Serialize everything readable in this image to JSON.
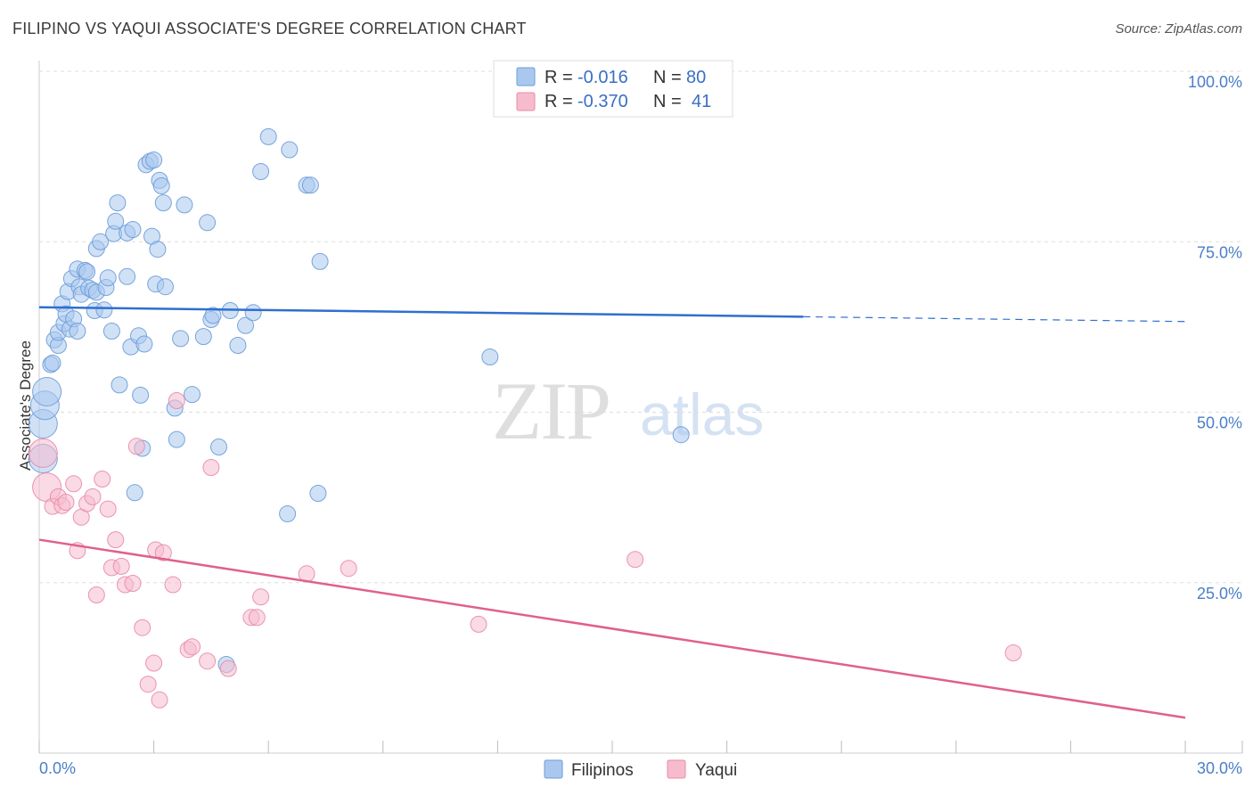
{
  "title": "FILIPINO VS YAQUI ASSOCIATE'S DEGREE CORRELATION CHART",
  "source": "Source: ZipAtlas.com",
  "watermark": {
    "zip": "ZIP",
    "atlas": "atlas"
  },
  "legend_top": {
    "r_label": "R =",
    "n_label": "N =",
    "rows": [
      {
        "r": "-0.016",
        "n": "80"
      },
      {
        "r": "-0.370",
        "n": "41"
      }
    ]
  },
  "colors": {
    "filipinos_fill": "#aac8ee",
    "filipinos_stroke": "#6a9bd8",
    "filipinos_line": "#2f6fce",
    "yaqui_fill": "#f6bccd",
    "yaqui_stroke": "#e98aa7",
    "yaqui_line": "#e0608c",
    "grid": "#dddddd",
    "tick_label": "#4a7fc8"
  },
  "chart_data": {
    "type": "scatter",
    "title": "FILIPINO VS YAQUI ASSOCIATE'S DEGREE CORRELATION CHART",
    "xlabel": "",
    "ylabel": "Associate's Degree",
    "xlim": [
      0,
      30
    ],
    "ylim": [
      0,
      100
    ],
    "x_tick_labels": [
      "0.0%",
      "30.0%"
    ],
    "y_ticks": [
      25,
      50,
      75,
      100
    ],
    "y_tick_labels": [
      "25.0%",
      "50.0%",
      "75.0%",
      "100.0%"
    ],
    "grid": true,
    "legend_position": "bottom-center",
    "series": [
      {
        "name": "Filipinos",
        "r": -0.016,
        "n": 80,
        "trend": {
          "x0": 0,
          "y0": 65.4,
          "x1": 20,
          "y1": 64.0,
          "dashed_to_x": 30,
          "dashed_to_y": 63.3
        },
        "points": [
          [
            0.1,
            48.3
          ],
          [
            0.1,
            43.2
          ],
          [
            0.15,
            51.0
          ],
          [
            0.2,
            53.0
          ],
          [
            0.3,
            57.0
          ],
          [
            0.35,
            57.2
          ],
          [
            0.4,
            60.6
          ],
          [
            0.5,
            59.8
          ],
          [
            0.5,
            61.7
          ],
          [
            0.6,
            65.9
          ],
          [
            0.65,
            63.0
          ],
          [
            0.7,
            64.4
          ],
          [
            0.75,
            67.7
          ],
          [
            0.8,
            62.2
          ],
          [
            0.85,
            69.6
          ],
          [
            0.9,
            63.7
          ],
          [
            1.0,
            61.9
          ],
          [
            1.0,
            71.0
          ],
          [
            1.05,
            68.4
          ],
          [
            1.1,
            67.3
          ],
          [
            1.2,
            70.8
          ],
          [
            1.25,
            70.6
          ],
          [
            1.3,
            68.2
          ],
          [
            1.4,
            67.9
          ],
          [
            1.45,
            64.9
          ],
          [
            1.5,
            67.6
          ],
          [
            1.5,
            74.0
          ],
          [
            1.6,
            75.0
          ],
          [
            1.7,
            65.0
          ],
          [
            1.75,
            68.3
          ],
          [
            1.8,
            69.7
          ],
          [
            1.9,
            61.9
          ],
          [
            1.95,
            76.2
          ],
          [
            2.0,
            78.0
          ],
          [
            2.05,
            80.7
          ],
          [
            2.1,
            54.0
          ],
          [
            2.3,
            69.9
          ],
          [
            2.3,
            76.3
          ],
          [
            2.4,
            59.6
          ],
          [
            2.45,
            76.8
          ],
          [
            2.5,
            38.2
          ],
          [
            2.6,
            61.2
          ],
          [
            2.65,
            52.5
          ],
          [
            2.7,
            44.7
          ],
          [
            2.75,
            60.0
          ],
          [
            2.8,
            86.3
          ],
          [
            2.9,
            86.8
          ],
          [
            2.95,
            75.8
          ],
          [
            3.0,
            87.0
          ],
          [
            3.05,
            68.8
          ],
          [
            3.1,
            73.9
          ],
          [
            3.15,
            84.0
          ],
          [
            3.2,
            83.2
          ],
          [
            3.25,
            80.7
          ],
          [
            3.3,
            68.4
          ],
          [
            3.55,
            50.6
          ],
          [
            3.6,
            46.0
          ],
          [
            3.7,
            60.8
          ],
          [
            3.8,
            80.4
          ],
          [
            4.0,
            52.6
          ],
          [
            4.3,
            61.1
          ],
          [
            4.4,
            77.8
          ],
          [
            4.5,
            63.6
          ],
          [
            4.55,
            64.2
          ],
          [
            4.7,
            44.9
          ],
          [
            4.9,
            13.0
          ],
          [
            5.0,
            64.9
          ],
          [
            5.2,
            59.8
          ],
          [
            5.4,
            62.7
          ],
          [
            5.6,
            64.6
          ],
          [
            5.8,
            85.3
          ],
          [
            6.0,
            90.4
          ],
          [
            6.5,
            35.1
          ],
          [
            6.55,
            88.5
          ],
          [
            7.0,
            83.3
          ],
          [
            7.1,
            83.3
          ],
          [
            7.3,
            38.1
          ],
          [
            7.35,
            72.1
          ],
          [
            11.8,
            58.1
          ],
          [
            16.8,
            46.7
          ]
        ]
      },
      {
        "name": "Yaqui",
        "r": -0.37,
        "n": 41,
        "trend": {
          "x0": 0,
          "y0": 31.3,
          "x1": 30,
          "y1": 5.2
        },
        "points": [
          [
            0.1,
            44.0
          ],
          [
            0.2,
            39.0
          ],
          [
            0.35,
            36.2
          ],
          [
            0.5,
            37.6
          ],
          [
            0.6,
            36.3
          ],
          [
            0.7,
            36.8
          ],
          [
            0.9,
            39.5
          ],
          [
            1.0,
            29.7
          ],
          [
            1.1,
            34.6
          ],
          [
            1.25,
            36.6
          ],
          [
            1.4,
            37.6
          ],
          [
            1.5,
            23.2
          ],
          [
            1.65,
            40.2
          ],
          [
            1.8,
            35.8
          ],
          [
            1.9,
            27.2
          ],
          [
            2.0,
            31.3
          ],
          [
            2.15,
            27.4
          ],
          [
            2.25,
            24.7
          ],
          [
            2.45,
            24.9
          ],
          [
            2.55,
            45.0
          ],
          [
            2.7,
            18.4
          ],
          [
            2.85,
            10.1
          ],
          [
            3.0,
            13.2
          ],
          [
            3.05,
            29.8
          ],
          [
            3.15,
            7.8
          ],
          [
            3.25,
            29.4
          ],
          [
            3.5,
            24.7
          ],
          [
            3.6,
            51.7
          ],
          [
            3.9,
            15.2
          ],
          [
            4.0,
            15.6
          ],
          [
            4.4,
            13.5
          ],
          [
            4.5,
            41.9
          ],
          [
            4.95,
            12.4
          ],
          [
            5.55,
            19.9
          ],
          [
            5.7,
            19.9
          ],
          [
            5.8,
            22.9
          ],
          [
            7.0,
            26.3
          ],
          [
            8.1,
            27.1
          ],
          [
            11.5,
            18.9
          ],
          [
            15.6,
            28.4
          ],
          [
            25.5,
            14.7
          ]
        ]
      }
    ]
  }
}
